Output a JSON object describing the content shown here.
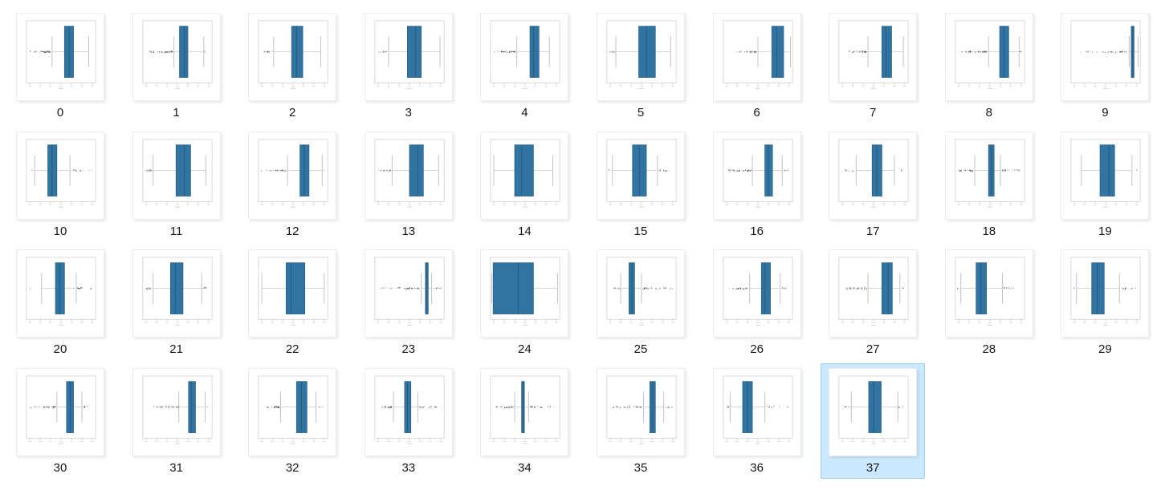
{
  "grid": {
    "columns": 10,
    "selected_index": 37,
    "selected_label": "37"
  },
  "colors": {
    "background": "#ffffff",
    "box_fill": "#3274a1",
    "box_edge": "#2b6287",
    "median_line": "#27597d",
    "whisker_line": "#c9c9c9",
    "whisker_cap": "#c2c2c2",
    "outlier_dot": "#3a3a3a",
    "plot_frame": "#d9d9d9",
    "tick_mark": "#bdbdbd",
    "micro_label": "#d8d8d8",
    "card_border": "#ececec",
    "selection_fill": "#cce8ff",
    "selection_border": "#99d1ff",
    "label_text": "#161616"
  },
  "chart_data": {
    "type": "bar",
    "note": "Each item is a thumbnail of a horizontal boxplot; geometry given as percent of plot width",
    "items": [
      {
        "label": "0",
        "box": [
          55,
          68
        ],
        "median": 62,
        "whiskers": [
          37,
          90
        ],
        "outliers_left": [
          3,
          35,
          30
        ],
        "outliers_right": null
      },
      {
        "label": "1",
        "box": [
          53,
          65
        ],
        "median": 60,
        "whiskers": [
          45,
          88
        ],
        "outliers_left": [
          3,
          43,
          32
        ],
        "outliers_right": [
          89,
          91,
          2
        ]
      },
      {
        "label": "2",
        "box": [
          48,
          64
        ],
        "median": 55,
        "whiskers": [
          22,
          90
        ],
        "outliers_left": [
          4,
          20,
          12
        ],
        "outliers_right": null
      },
      {
        "label": "3",
        "box": [
          47,
          67
        ],
        "median": 59,
        "whiskers": [
          20,
          94
        ],
        "outliers_left": [
          4,
          18,
          8
        ],
        "outliers_right": null
      },
      {
        "label": "4",
        "box": [
          57,
          70
        ],
        "median": 62,
        "whiskers": [
          38,
          85
        ],
        "outliers_left": [
          2,
          37,
          30
        ],
        "outliers_right": null
      },
      {
        "label": "5",
        "box": [
          46,
          70
        ],
        "median": 57,
        "whiskers": [
          13,
          92
        ],
        "outliers_left": [
          3,
          12,
          7
        ],
        "outliers_right": null
      },
      {
        "label": "6",
        "box": [
          70,
          87
        ],
        "median": 77,
        "whiskers": [
          50,
          97
        ],
        "outliers_left": [
          15,
          48,
          26
        ],
        "outliers_right": null
      },
      {
        "label": "7",
        "box": [
          62,
          76
        ],
        "median": 68,
        "whiskers": [
          42,
          93
        ],
        "outliers_left": [
          8,
          40,
          24
        ],
        "outliers_right": null
      },
      {
        "label": "8",
        "box": [
          64,
          77
        ],
        "median": 70,
        "whiskers": [
          48,
          92
        ],
        "outliers_left": [
          5,
          47,
          32
        ],
        "outliers_right": [
          93,
          96,
          3
        ]
      },
      {
        "label": "9",
        "box": [
          87,
          91
        ],
        "median": 89,
        "whiskers": [
          84,
          97
        ],
        "outliers_left": [
          5,
          83,
          30
        ],
        "outliers_right": null
      },
      {
        "label": "10",
        "box": [
          31,
          44
        ],
        "median": 37,
        "whiskers": [
          12,
          63
        ],
        "outliers_left": [
          7,
          9,
          2
        ],
        "outliers_right": [
          68,
          95,
          10
        ]
      },
      {
        "label": "11",
        "box": [
          48,
          69
        ],
        "median": 60,
        "whiskers": [
          15,
          91
        ],
        "outliers_left": [
          2,
          13,
          10
        ],
        "outliers_right": null
      },
      {
        "label": "12",
        "box": [
          60,
          73
        ],
        "median": 66,
        "whiskers": [
          42,
          92
        ],
        "outliers_left": [
          3,
          40,
          26
        ],
        "outliers_right": [
          95,
          97,
          1
        ]
      },
      {
        "label": "13",
        "box": [
          50,
          70
        ],
        "median": 62,
        "whiskers": [
          25,
          92
        ],
        "outliers_left": [
          5,
          23,
          12
        ],
        "outliers_right": null
      },
      {
        "label": "14",
        "box": [
          35,
          62
        ],
        "median": 45,
        "whiskers": [
          5,
          90
        ],
        "outliers_left": null,
        "outliers_right": null
      },
      {
        "label": "15",
        "box": [
          37,
          57
        ],
        "median": 47,
        "whiskers": [
          8,
          73
        ],
        "outliers_left": [
          2,
          4,
          2
        ],
        "outliers_right": [
          75,
          95,
          12
        ]
      },
      {
        "label": "16",
        "box": [
          60,
          71
        ],
        "median": 65,
        "whiskers": [
          42,
          85
        ],
        "outliers_left": [
          3,
          40,
          28
        ],
        "outliers_right": [
          88,
          93,
          4
        ]
      },
      {
        "label": "17",
        "box": [
          48,
          62
        ],
        "median": 55,
        "whiskers": [
          25,
          80
        ],
        "outliers_left": [
          8,
          22,
          6
        ],
        "outliers_right": [
          90,
          92,
          2
        ]
      },
      {
        "label": "18",
        "box": [
          48,
          56
        ],
        "median": 52,
        "whiskers": [
          28,
          65
        ],
        "outliers_left": [
          3,
          26,
          20
        ],
        "outliers_right": [
          68,
          95,
          16
        ]
      },
      {
        "label": "19",
        "box": [
          42,
          63
        ],
        "median": 55,
        "whiskers": [
          15,
          88
        ],
        "outliers_left": null,
        "outliers_right": [
          95,
          97,
          1
        ]
      },
      {
        "label": "20",
        "box": [
          42,
          55
        ],
        "median": 48,
        "whiskers": [
          22,
          72
        ],
        "outliers_left": [
          4,
          6,
          2
        ],
        "outliers_right": [
          74,
          95,
          14
        ]
      },
      {
        "label": "21",
        "box": [
          40,
          58
        ],
        "median": 47,
        "whiskers": [
          15,
          85
        ],
        "outliers_left": [
          3,
          12,
          8
        ],
        "outliers_right": [
          87,
          95,
          5
        ]
      },
      {
        "label": "22",
        "box": [
          40,
          67
        ],
        "median": 47,
        "whiskers": [
          5,
          95
        ],
        "outliers_left": null,
        "outliers_right": null
      },
      {
        "label": "23",
        "box": [
          73,
          77
        ],
        "median": 75,
        "whiskers": [
          67,
          82
        ],
        "outliers_left": [
          4,
          65,
          30
        ],
        "outliers_right": [
          84,
          96,
          6
        ]
      },
      {
        "label": "24",
        "box": [
          4,
          62
        ],
        "median": 40,
        "whiskers": [
          2,
          97
        ],
        "outliers_left": null,
        "outliers_right": null
      },
      {
        "label": "25",
        "box": [
          32,
          40
        ],
        "median": 36,
        "whiskers": [
          20,
          50
        ],
        "outliers_left": [
          5,
          18,
          8
        ],
        "outliers_right": [
          52,
          95,
          26
        ]
      },
      {
        "label": "26",
        "box": [
          55,
          68
        ],
        "median": 60,
        "whiskers": [
          38,
          82
        ],
        "outliers_left": [
          5,
          35,
          20
        ],
        "outliers_right": [
          85,
          92,
          5
        ]
      },
      {
        "label": "27",
        "box": [
          62,
          77
        ],
        "median": 71,
        "whiskers": [
          42,
          88
        ],
        "outliers_left": [
          5,
          40,
          22
        ],
        "outliers_right": [
          92,
          94,
          2
        ]
      },
      {
        "label": "28",
        "box": [
          30,
          45
        ],
        "median": 37,
        "whiskers": [
          8,
          68
        ],
        "outliers_left": [
          3,
          5,
          2
        ],
        "outliers_right": [
          70,
          90,
          10
        ]
      },
      {
        "label": "29",
        "box": [
          30,
          48
        ],
        "median": 38,
        "whiskers": [
          8,
          70
        ],
        "outliers_left": [
          3,
          5,
          1
        ],
        "outliers_right": [
          72,
          95,
          12
        ]
      },
      {
        "label": "30",
        "box": [
          58,
          68
        ],
        "median": 63,
        "whiskers": [
          44,
          80
        ],
        "outliers_left": [
          3,
          42,
          28
        ],
        "outliers_right": [
          82,
          90,
          6
        ]
      },
      {
        "label": "31",
        "box": [
          66,
          76
        ],
        "median": 70,
        "whiskers": [
          52,
          90
        ],
        "outliers_left": [
          15,
          52,
          22
        ],
        "outliers_right": [
          92,
          94,
          1
        ]
      },
      {
        "label": "32",
        "box": [
          55,
          70
        ],
        "median": 62,
        "whiskers": [
          32,
          83
        ],
        "outliers_left": [
          3,
          30,
          20
        ],
        "outliers_right": [
          87,
          93,
          4
        ]
      },
      {
        "label": "33",
        "box": [
          43,
          52
        ],
        "median": 47,
        "whiskers": [
          27,
          62
        ],
        "outliers_left": [
          3,
          25,
          18
        ],
        "outliers_right": [
          64,
          95,
          16
        ]
      },
      {
        "label": "34",
        "box": [
          45,
          49
        ],
        "median": 47,
        "whiskers": [
          35,
          55
        ],
        "outliers_left": [
          3,
          33,
          22
        ],
        "outliers_right": [
          57,
          95,
          18
        ]
      },
      {
        "label": "35",
        "box": [
          62,
          70
        ],
        "median": 66,
        "whiskers": [
          53,
          82
        ],
        "outliers_left": [
          3,
          50,
          26
        ],
        "outliers_right": [
          85,
          95,
          6
        ]
      },
      {
        "label": "36",
        "box": [
          28,
          42
        ],
        "median": 35,
        "whiskers": [
          10,
          60
        ],
        "outliers_left": [
          4,
          9,
          5
        ],
        "outliers_right": [
          62,
          95,
          7
        ]
      },
      {
        "label": "37",
        "box": [
          43,
          61
        ],
        "median": 50,
        "whiskers": [
          18,
          85
        ],
        "outliers_left": [
          6,
          17,
          6
        ],
        "outliers_right": [
          86,
          96,
          6
        ]
      }
    ]
  }
}
